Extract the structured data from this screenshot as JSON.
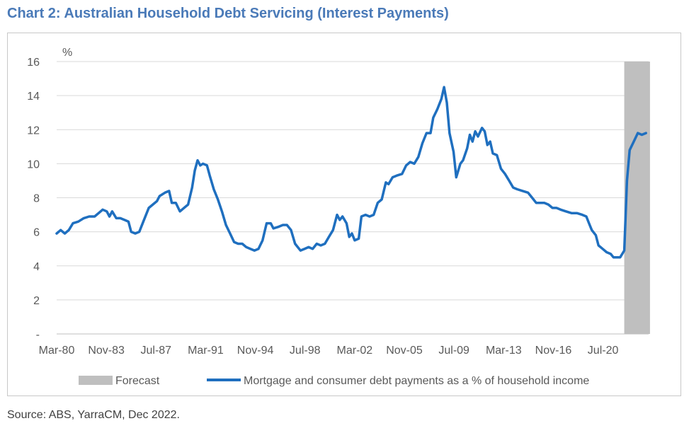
{
  "title": "Chart 2: Australian Household Debt Servicing (Interest Payments)",
  "source": "Source: ABS, YarraCM, Dec 2022.",
  "chart_data": {
    "type": "line",
    "y_unit": "%",
    "ylim": [
      0,
      16
    ],
    "y_ticks": [
      "-",
      "2",
      "4",
      "6",
      "8",
      "10",
      "12",
      "14",
      "16"
    ],
    "x_tick_labels": [
      "Mar-80",
      "Nov-83",
      "Jul-87",
      "Mar-91",
      "Nov-94",
      "Jul-98",
      "Mar-02",
      "Nov-05",
      "Jul-09",
      "Mar-13",
      "Nov-16",
      "Jul-20"
    ],
    "grid": true,
    "legend_position": "bottom",
    "colors": {
      "line": "#1f6fbf",
      "forecast": "#bfbfbf",
      "grid": "#d9d9d9"
    },
    "forecast": {
      "label": "Forecast",
      "x_start": 2021.9,
      "x_end": 2023.8
    },
    "series": [
      {
        "name": "Mortgage and consumer debt payments as a % of household income",
        "points": [
          [
            1980.0,
            5.9
          ],
          [
            1980.3,
            6.1
          ],
          [
            1980.6,
            5.9
          ],
          [
            1980.9,
            6.1
          ],
          [
            1981.2,
            6.5
          ],
          [
            1981.6,
            6.6
          ],
          [
            1982.0,
            6.8
          ],
          [
            1982.4,
            6.9
          ],
          [
            1982.8,
            6.9
          ],
          [
            1983.1,
            7.1
          ],
          [
            1983.4,
            7.3
          ],
          [
            1983.7,
            7.2
          ],
          [
            1983.9,
            6.9
          ],
          [
            1984.1,
            7.2
          ],
          [
            1984.4,
            6.8
          ],
          [
            1984.7,
            6.8
          ],
          [
            1985.0,
            6.7
          ],
          [
            1985.3,
            6.6
          ],
          [
            1985.5,
            6.0
          ],
          [
            1985.8,
            5.9
          ],
          [
            1986.1,
            6.0
          ],
          [
            1986.4,
            6.6
          ],
          [
            1986.8,
            7.4
          ],
          [
            1987.1,
            7.6
          ],
          [
            1987.4,
            7.8
          ],
          [
            1987.6,
            8.1
          ],
          [
            1988.0,
            8.3
          ],
          [
            1988.3,
            8.4
          ],
          [
            1988.5,
            7.7
          ],
          [
            1988.8,
            7.7
          ],
          [
            1989.1,
            7.2
          ],
          [
            1989.4,
            7.4
          ],
          [
            1989.7,
            7.6
          ],
          [
            1990.0,
            8.6
          ],
          [
            1990.2,
            9.6
          ],
          [
            1990.4,
            10.2
          ],
          [
            1990.6,
            9.9
          ],
          [
            1990.8,
            10.0
          ],
          [
            1991.1,
            9.9
          ],
          [
            1991.3,
            9.3
          ],
          [
            1991.6,
            8.5
          ],
          [
            1991.9,
            7.9
          ],
          [
            1992.2,
            7.2
          ],
          [
            1992.5,
            6.4
          ],
          [
            1992.8,
            5.9
          ],
          [
            1993.1,
            5.4
          ],
          [
            1993.4,
            5.3
          ],
          [
            1993.7,
            5.3
          ],
          [
            1994.0,
            5.1
          ],
          [
            1994.3,
            5.0
          ],
          [
            1994.6,
            4.9
          ],
          [
            1994.9,
            5.0
          ],
          [
            1995.2,
            5.5
          ],
          [
            1995.5,
            6.5
          ],
          [
            1995.8,
            6.5
          ],
          [
            1996.0,
            6.2
          ],
          [
            1996.4,
            6.3
          ],
          [
            1996.7,
            6.4
          ],
          [
            1997.0,
            6.4
          ],
          [
            1997.3,
            6.1
          ],
          [
            1997.6,
            5.3
          ],
          [
            1998.0,
            4.9
          ],
          [
            1998.3,
            5.0
          ],
          [
            1998.6,
            5.1
          ],
          [
            1998.9,
            5.0
          ],
          [
            1999.2,
            5.3
          ],
          [
            1999.5,
            5.2
          ],
          [
            1999.8,
            5.3
          ],
          [
            2000.1,
            5.7
          ],
          [
            2000.4,
            6.1
          ],
          [
            2000.7,
            7.0
          ],
          [
            2000.9,
            6.7
          ],
          [
            2001.1,
            6.9
          ],
          [
            2001.4,
            6.5
          ],
          [
            2001.6,
            5.7
          ],
          [
            2001.8,
            5.9
          ],
          [
            2002.0,
            5.5
          ],
          [
            2002.3,
            5.6
          ],
          [
            2002.5,
            6.9
          ],
          [
            2002.8,
            7.0
          ],
          [
            2003.1,
            6.9
          ],
          [
            2003.4,
            7.0
          ],
          [
            2003.7,
            7.7
          ],
          [
            2004.0,
            7.9
          ],
          [
            2004.3,
            8.9
          ],
          [
            2004.5,
            8.8
          ],
          [
            2004.8,
            9.2
          ],
          [
            2005.1,
            9.3
          ],
          [
            2005.5,
            9.4
          ],
          [
            2005.8,
            9.9
          ],
          [
            2006.1,
            10.1
          ],
          [
            2006.4,
            10.0
          ],
          [
            2006.7,
            10.4
          ],
          [
            2007.0,
            11.2
          ],
          [
            2007.3,
            11.8
          ],
          [
            2007.6,
            11.8
          ],
          [
            2007.8,
            12.7
          ],
          [
            2008.1,
            13.2
          ],
          [
            2008.4,
            13.8
          ],
          [
            2008.6,
            14.5
          ],
          [
            2008.8,
            13.6
          ],
          [
            2009.0,
            11.8
          ],
          [
            2009.3,
            10.7
          ],
          [
            2009.5,
            9.2
          ],
          [
            2009.8,
            10.0
          ],
          [
            2010.0,
            10.2
          ],
          [
            2010.3,
            10.9
          ],
          [
            2010.5,
            11.7
          ],
          [
            2010.7,
            11.3
          ],
          [
            2010.9,
            11.9
          ],
          [
            2011.1,
            11.6
          ],
          [
            2011.4,
            12.1
          ],
          [
            2011.6,
            11.9
          ],
          [
            2011.8,
            11.1
          ],
          [
            2012.0,
            11.3
          ],
          [
            2012.2,
            10.6
          ],
          [
            2012.5,
            10.5
          ],
          [
            2012.8,
            9.7
          ],
          [
            2013.1,
            9.4
          ],
          [
            2013.4,
            9.0
          ],
          [
            2013.7,
            8.6
          ],
          [
            2014.0,
            8.5
          ],
          [
            2014.4,
            8.4
          ],
          [
            2014.8,
            8.3
          ],
          [
            2015.1,
            8.0
          ],
          [
            2015.4,
            7.7
          ],
          [
            2015.7,
            7.7
          ],
          [
            2016.0,
            7.7
          ],
          [
            2016.3,
            7.6
          ],
          [
            2016.6,
            7.4
          ],
          [
            2016.9,
            7.4
          ],
          [
            2017.2,
            7.3
          ],
          [
            2017.6,
            7.2
          ],
          [
            2018.0,
            7.1
          ],
          [
            2018.4,
            7.1
          ],
          [
            2018.8,
            7.0
          ],
          [
            2019.1,
            6.9
          ],
          [
            2019.3,
            6.5
          ],
          [
            2019.5,
            6.1
          ],
          [
            2019.8,
            5.8
          ],
          [
            2020.0,
            5.2
          ],
          [
            2020.3,
            5.0
          ],
          [
            2020.6,
            4.8
          ],
          [
            2020.9,
            4.7
          ],
          [
            2021.1,
            4.5
          ],
          [
            2021.4,
            4.5
          ],
          [
            2021.6,
            4.5
          ],
          [
            2021.9,
            4.9
          ],
          [
            2022.1,
            9.0
          ],
          [
            2022.3,
            10.8
          ],
          [
            2022.6,
            11.3
          ],
          [
            2022.9,
            11.8
          ],
          [
            2023.2,
            11.7
          ],
          [
            2023.5,
            11.8
          ]
        ]
      }
    ]
  }
}
